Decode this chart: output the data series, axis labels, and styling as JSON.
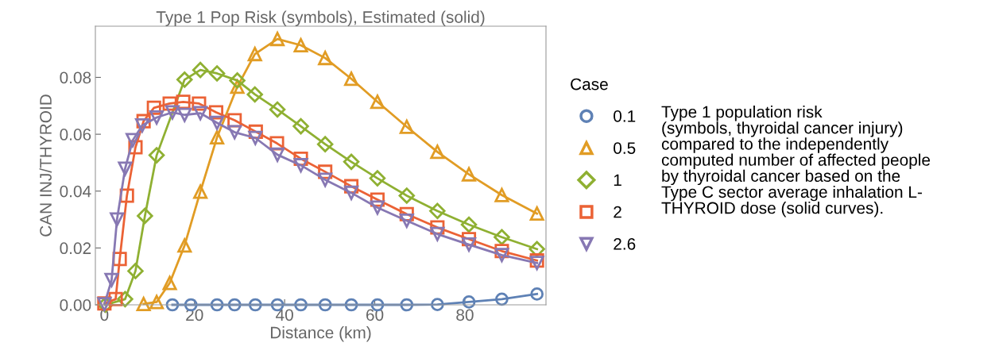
{
  "chart_data": {
    "type": "line",
    "title": "Type 1 Pop Risk (symbols), Estimated (solid)",
    "xlabel": "Distance (km)",
    "ylabel": "CAN INJ/THYROID",
    "legend_title": "Case",
    "xlim": [
      -2,
      98
    ],
    "ylim": [
      0,
      0.098
    ],
    "xticks": [
      0,
      20,
      40,
      60,
      80
    ],
    "yticks": [
      {
        "value": 0,
        "label": "0.00"
      },
      {
        "value": 0.02,
        "label": "0.02"
      },
      {
        "value": 0.04,
        "label": "0.04"
      },
      {
        "value": 0.06,
        "label": "0.06"
      },
      {
        "value": 0.08,
        "label": "0.08"
      }
    ],
    "grid": false,
    "legend": "right",
    "line_style": "solid",
    "series": [
      {
        "name": "0.1",
        "color": "#5e81b5",
        "marker": "circle",
        "x": [
          15.1,
          19.2,
          25.0,
          28.9,
          33.5,
          38.4,
          43.6,
          49.0,
          54.8,
          60.6,
          67.1,
          73.9,
          80.9,
          88.2,
          96.0
        ],
        "values": [
          0,
          0,
          0,
          0,
          0,
          0,
          0,
          0,
          0,
          0,
          0,
          0.0001,
          0.001,
          0.002,
          0.0038
        ]
      },
      {
        "name": "0.5",
        "color": "#e19c24",
        "marker": "triangle",
        "x": [
          8.7,
          11.6,
          14.5,
          17.8,
          21.3,
          25.0,
          29.5,
          33.4,
          38.4,
          43.6,
          49.0,
          54.8,
          60.6,
          67.1,
          73.9,
          80.9,
          88.2,
          96.0
        ],
        "values": [
          0.0003,
          0.001,
          0.0077,
          0.0209,
          0.0398,
          0.0589,
          0.0767,
          0.0882,
          0.0935,
          0.0913,
          0.0868,
          0.0795,
          0.0714,
          0.0626,
          0.0538,
          0.0459,
          0.0386,
          0.0321
        ]
      },
      {
        "name": "1",
        "color": "#8fb032",
        "marker": "diamond",
        "x": [
          0.2,
          4.6,
          6.9,
          9.0,
          11.6,
          17.8,
          21.3,
          25.0,
          29.5,
          33.4,
          38.4,
          43.6,
          49.0,
          54.8,
          60.6,
          67.1,
          73.9,
          80.9,
          88.2,
          96.0
        ],
        "values": [
          0,
          0.002,
          0.0119,
          0.0313,
          0.0526,
          0.0792,
          0.0826,
          0.0814,
          0.0789,
          0.074,
          0.0687,
          0.0628,
          0.0565,
          0.0503,
          0.0445,
          0.0384,
          0.033,
          0.0282,
          0.0238,
          0.0196
        ]
      },
      {
        "name": "2",
        "color": "#eb6235",
        "marker": "square",
        "x": [
          0,
          2.5,
          3.4,
          5.0,
          6.9,
          8.7,
          11.0,
          14.5,
          17.5,
          21.0,
          24.8,
          28.9,
          33.6,
          38.3,
          43.6,
          49.0,
          54.8,
          60.6,
          67.1,
          73.9,
          80.9,
          88.2,
          96.0
        ],
        "values": [
          0.0005,
          0.002,
          0.0161,
          0.0384,
          0.0554,
          0.0646,
          0.0693,
          0.0708,
          0.0714,
          0.0708,
          0.0677,
          0.0649,
          0.0609,
          0.0568,
          0.0514,
          0.0468,
          0.0417,
          0.037,
          0.0319,
          0.0272,
          0.0231,
          0.0189,
          0.0156
        ]
      },
      {
        "name": "2.6",
        "color": "#8778b3",
        "marker": "triangle_down",
        "x": [
          0,
          1.6,
          2.8,
          4.6,
          6.3,
          8.4,
          11.6,
          15.1,
          17.8,
          21.3,
          25.0,
          28.9,
          33.5,
          38.4,
          43.6,
          49.0,
          54.8,
          60.6,
          67.1,
          73.9,
          80.9,
          88.2,
          96.0
        ],
        "values": [
          0.0002,
          0.0087,
          0.03,
          0.0479,
          0.0579,
          0.0631,
          0.0659,
          0.0677,
          0.0668,
          0.0674,
          0.064,
          0.0607,
          0.0587,
          0.0528,
          0.0491,
          0.044,
          0.0394,
          0.0342,
          0.0296,
          0.0249,
          0.0212,
          0.0175,
          0.0147
        ]
      }
    ],
    "annotations": [
      "Type 1 population risk\n(symbols, thyroidal cancer injury)\ncompared to the independently\ncomputed number of affected people\nby thyroidal cancer based on the\nType C sector average inhalation L-\nTHYROID dose (solid curves)."
    ]
  }
}
